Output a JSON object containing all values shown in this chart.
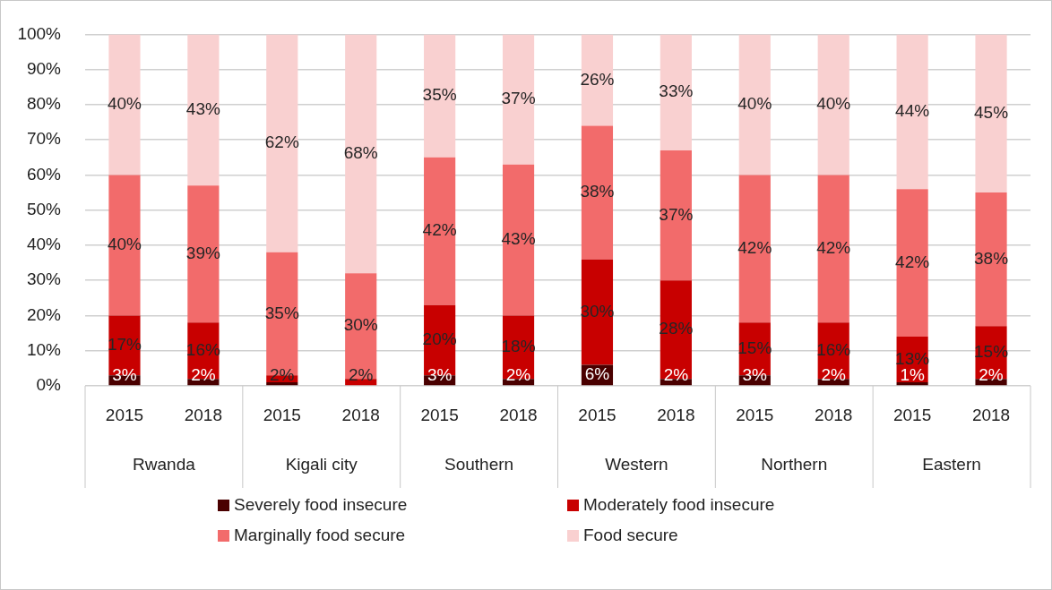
{
  "chart_data": {
    "type": "bar",
    "stacked": true,
    "categories": [
      "2015",
      "2018",
      "2015",
      "2018",
      "2015",
      "2018",
      "2015",
      "2018",
      "2015",
      "2018",
      "2015",
      "2018"
    ],
    "annotations": [
      "Rwanda",
      "Kigali city",
      "Southern",
      "Western",
      "Northern",
      "Eastern"
    ],
    "series": [
      {
        "name": "Severely food insecure",
        "color": "#4a0000",
        "values": [
          3,
          2,
          1,
          0,
          3,
          2,
          6,
          2,
          3,
          2,
          1,
          2
        ],
        "value_labels": [
          "3%",
          "2%",
          null,
          null,
          "3%",
          "2%",
          "6%",
          "2%",
          "3%",
          "2%",
          "1%",
          "2%"
        ]
      },
      {
        "name": "Moderately food insecure",
        "color": "#c80000",
        "values": [
          17,
          16,
          2,
          2,
          20,
          18,
          30,
          28,
          15,
          16,
          13,
          15
        ],
        "value_labels": [
          "17%",
          "16%",
          "2%",
          "2%",
          "20%",
          "18%",
          "30%",
          "28%",
          "15%",
          "16%",
          "13%",
          "15%"
        ]
      },
      {
        "name": "Marginally food secure",
        "color": "#f26b6b",
        "values": [
          40,
          39,
          35,
          30,
          42,
          43,
          38,
          37,
          42,
          42,
          42,
          38
        ],
        "value_labels": [
          "40%",
          "39%",
          "35%",
          "30%",
          "42%",
          "43%",
          "38%",
          "37%",
          "42%",
          "42%",
          "42%",
          "38%"
        ]
      },
      {
        "name": "Food secure",
        "color": "#f9d0d0",
        "values": [
          40,
          43,
          62,
          68,
          35,
          37,
          26,
          33,
          40,
          40,
          44,
          45
        ],
        "value_labels": [
          "40%",
          "43%",
          "62%",
          "68%",
          "35%",
          "37%",
          "26%",
          "33%",
          "40%",
          "40%",
          "44%",
          "45%"
        ]
      }
    ],
    "ylim": [
      0,
      100
    ],
    "yticks": [
      {
        "value": 0,
        "label": "0%"
      },
      {
        "value": 10,
        "label": "10%"
      },
      {
        "value": 20,
        "label": "20%"
      },
      {
        "value": 30,
        "label": "30%"
      },
      {
        "value": 40,
        "label": "40%"
      },
      {
        "value": 50,
        "label": "50%"
      },
      {
        "value": 60,
        "label": "60%"
      },
      {
        "value": 70,
        "label": "70%"
      },
      {
        "value": 80,
        "label": "80%"
      },
      {
        "value": 90,
        "label": "90%"
      },
      {
        "value": 100,
        "label": "100%"
      }
    ],
    "grid": "y",
    "legend": "bottom"
  }
}
